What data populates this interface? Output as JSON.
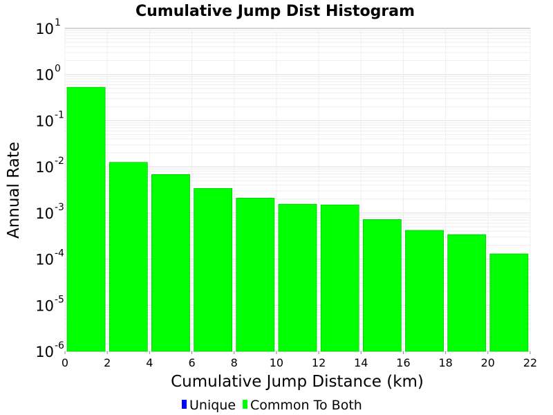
{
  "chart_data": {
    "type": "bar",
    "title": "Cumulative Jump Dist Histogram",
    "xlabel": "Cumulative Jump Distance (km)",
    "ylabel": "Annual Rate",
    "xlim": [
      0,
      22
    ],
    "x_ticks": [
      0,
      2,
      4,
      6,
      8,
      10,
      12,
      14,
      16,
      18,
      20,
      22
    ],
    "y_scale": "log",
    "ylim": [
      1e-06,
      10
    ],
    "y_tick_base": "10",
    "y_tick_exponents": [
      "1",
      "0",
      "-1",
      "-2",
      "-3",
      "-4",
      "-5",
      "-6"
    ],
    "grid": true,
    "bin_width": 2,
    "series": [
      {
        "name": "Unique",
        "color": "#0000ff",
        "values": [
          0,
          0,
          0,
          0,
          0,
          0,
          0,
          0,
          0,
          0,
          0
        ]
      },
      {
        "name": "Common To Both",
        "color": "#00ff00",
        "x": [
          1,
          3,
          5,
          7,
          9,
          11,
          13,
          15,
          17,
          19,
          21
        ],
        "values": [
          0.53,
          0.0125,
          0.0068,
          0.0034,
          0.0021,
          0.00155,
          0.0015,
          0.00072,
          0.00042,
          0.00034,
          0.00013
        ]
      }
    ],
    "legend_position": "bottom"
  }
}
